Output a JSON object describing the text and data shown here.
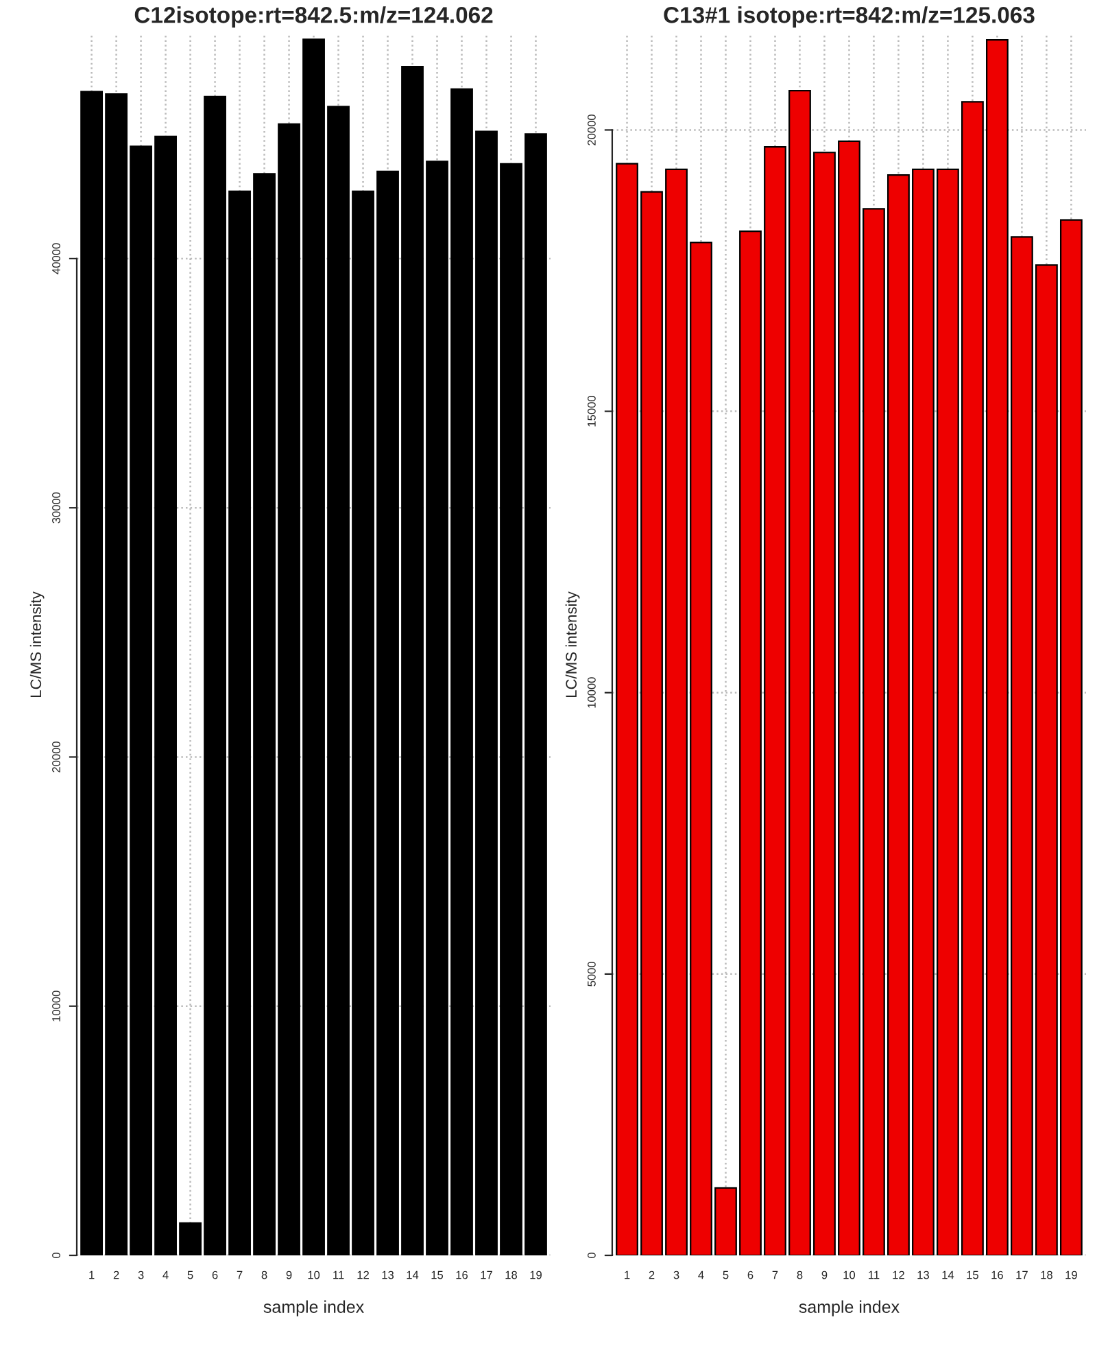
{
  "chart_data": [
    {
      "type": "bar",
      "title": "C12isotope:rt=842.5:m/z=124.062",
      "xlabel": "sample index",
      "ylabel": "LC/MS intensity",
      "categories": [
        "1",
        "2",
        "3",
        "4",
        "5",
        "6",
        "7",
        "8",
        "9",
        "10",
        "11",
        "12",
        "13",
        "14",
        "15",
        "16",
        "17",
        "18",
        "19"
      ],
      "values": [
        46700,
        46600,
        44500,
        44900,
        1300,
        46500,
        42700,
        43400,
        45400,
        48800,
        46100,
        42700,
        43500,
        47700,
        43900,
        46800,
        45100,
        43800,
        45000
      ],
      "color": "#000000",
      "ylim": [
        0,
        49000
      ],
      "yticks": [
        0,
        10000,
        20000,
        30000,
        40000
      ],
      "grid": true
    },
    {
      "type": "bar",
      "title": "C13#1 isotope:rt=842:m/z=125.063",
      "xlabel": "sample index",
      "ylabel": "LC/MS intensity",
      "categories": [
        "1",
        "2",
        "3",
        "4",
        "5",
        "6",
        "7",
        "8",
        "9",
        "10",
        "11",
        "12",
        "13",
        "14",
        "15",
        "16",
        "17",
        "18",
        "19"
      ],
      "values": [
        19400,
        18900,
        19300,
        18000,
        1200,
        18200,
        19700,
        20700,
        19600,
        19800,
        18600,
        19200,
        19300,
        19300,
        20500,
        21600,
        18100,
        17600,
        18400
      ],
      "color": "#ee0000",
      "ylim": [
        0,
        21700
      ],
      "yticks": [
        0,
        5000,
        10000,
        15000,
        20000
      ],
      "grid": true
    }
  ]
}
